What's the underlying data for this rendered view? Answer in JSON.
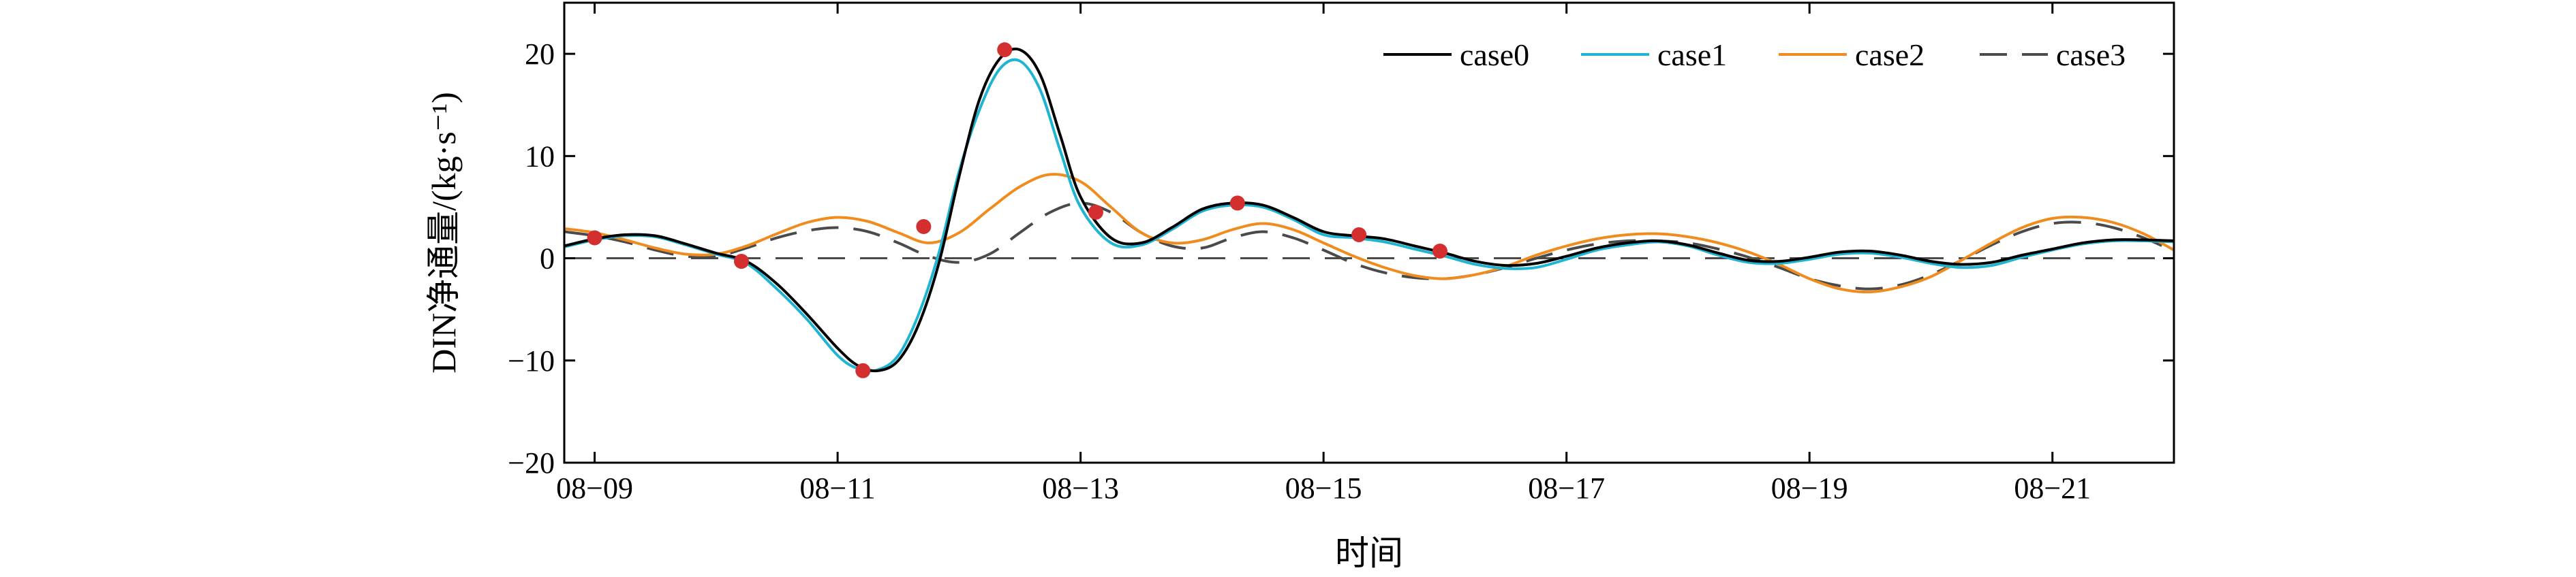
{
  "chart_data": {
    "type": "line",
    "xlabel": "时间",
    "ylabel": "DIN净通量/(kg·s⁻¹)",
    "xlim": [
      "2023-08-08T18:00",
      "2023-08-22T00:00"
    ],
    "ylim": [
      -20,
      25
    ],
    "xticks": [
      "2023-08-09",
      "2023-08-11",
      "2023-08-13",
      "2023-08-15",
      "2023-08-17",
      "2023-08-19",
      "2023-08-21"
    ],
    "xtick_labels": [
      "08−09",
      "08−11",
      "08−13",
      "08−15",
      "08−17",
      "08−19",
      "08−21"
    ],
    "yticks": [
      -20,
      -10,
      0,
      10,
      20
    ],
    "ytick_labels": [
      "−20",
      "−10",
      "0",
      "10",
      "20"
    ],
    "grid": false,
    "legend_position": "top-right",
    "series": [
      {
        "name": "case0",
        "color": "#000000",
        "dash": "solid",
        "x": [
          "2023-08-08T18:00",
          "2023-08-09T00:00",
          "2023-08-09T06:00",
          "2023-08-09T12:00",
          "2023-08-09T18:00",
          "2023-08-10T00:00",
          "2023-08-10T06:00",
          "2023-08-10T12:00",
          "2023-08-10T18:00",
          "2023-08-11T00:00",
          "2023-08-11T04:00",
          "2023-08-11T08:00",
          "2023-08-11T12:00",
          "2023-08-11T16:00",
          "2023-08-11T20:00",
          "2023-08-12T00:00",
          "2023-08-12T04:00",
          "2023-08-12T08:00",
          "2023-08-12T12:00",
          "2023-08-12T16:00",
          "2023-08-12T20:00",
          "2023-08-13T00:00",
          "2023-08-13T06:00",
          "2023-08-13T12:00",
          "2023-08-13T18:00",
          "2023-08-14T00:00",
          "2023-08-14T06:00",
          "2023-08-14T12:00",
          "2023-08-14T18:00",
          "2023-08-15T00:00",
          "2023-08-15T06:00",
          "2023-08-15T12:00",
          "2023-08-15T18:00",
          "2023-08-16T00:00",
          "2023-08-16T06:00",
          "2023-08-16T12:00",
          "2023-08-16T18:00",
          "2023-08-17T00:00",
          "2023-08-17T06:00",
          "2023-08-17T12:00",
          "2023-08-17T18:00",
          "2023-08-18T00:00",
          "2023-08-18T06:00",
          "2023-08-18T12:00",
          "2023-08-18T18:00",
          "2023-08-19T00:00",
          "2023-08-19T06:00",
          "2023-08-19T12:00",
          "2023-08-19T18:00",
          "2023-08-20T00:00",
          "2023-08-20T06:00",
          "2023-08-20T12:00",
          "2023-08-20T18:00",
          "2023-08-21T00:00",
          "2023-08-21T06:00",
          "2023-08-21T12:00",
          "2023-08-21T18:00",
          "2023-08-22T00:00"
        ],
        "y": [
          1.2,
          1.9,
          2.3,
          2.2,
          1.4,
          0.5,
          -0.3,
          -2.5,
          -5.5,
          -8.8,
          -10.5,
          -11.0,
          -10.0,
          -6.5,
          -0.5,
          8.0,
          15.5,
          19.5,
          20.4,
          18.0,
          12.0,
          6.0,
          2.0,
          1.5,
          3.0,
          4.8,
          5.4,
          5.2,
          4.0,
          2.6,
          2.2,
          1.9,
          1.2,
          0.5,
          -0.3,
          -0.7,
          -0.5,
          0.2,
          1.0,
          1.5,
          1.7,
          1.3,
          0.5,
          -0.2,
          -0.3,
          0.1,
          0.6,
          0.7,
          0.3,
          -0.3,
          -0.6,
          -0.4,
          0.3,
          0.9,
          1.5,
          1.8,
          1.8,
          1.7
        ]
      },
      {
        "name": "case1",
        "color": "#1fb5d2",
        "dash": "solid",
        "x": [
          "2023-08-08T18:00",
          "2023-08-09T00:00",
          "2023-08-09T06:00",
          "2023-08-09T12:00",
          "2023-08-09T18:00",
          "2023-08-10T00:00",
          "2023-08-10T06:00",
          "2023-08-10T12:00",
          "2023-08-10T18:00",
          "2023-08-11T00:00",
          "2023-08-11T04:00",
          "2023-08-11T08:00",
          "2023-08-11T12:00",
          "2023-08-11T16:00",
          "2023-08-11T20:00",
          "2023-08-12T00:00",
          "2023-08-12T04:00",
          "2023-08-12T08:00",
          "2023-08-12T12:00",
          "2023-08-12T16:00",
          "2023-08-12T20:00",
          "2023-08-13T00:00",
          "2023-08-13T06:00",
          "2023-08-13T12:00",
          "2023-08-13T18:00",
          "2023-08-14T00:00",
          "2023-08-14T06:00",
          "2023-08-14T12:00",
          "2023-08-14T18:00",
          "2023-08-15T00:00",
          "2023-08-15T06:00",
          "2023-08-15T12:00",
          "2023-08-15T18:00",
          "2023-08-16T00:00",
          "2023-08-16T06:00",
          "2023-08-16T12:00",
          "2023-08-16T18:00",
          "2023-08-17T00:00",
          "2023-08-17T06:00",
          "2023-08-17T12:00",
          "2023-08-17T18:00",
          "2023-08-18T00:00",
          "2023-08-18T06:00",
          "2023-08-18T12:00",
          "2023-08-18T18:00",
          "2023-08-19T00:00",
          "2023-08-19T06:00",
          "2023-08-19T12:00",
          "2023-08-19T18:00",
          "2023-08-20T00:00",
          "2023-08-20T06:00",
          "2023-08-20T12:00",
          "2023-08-20T18:00",
          "2023-08-21T00:00",
          "2023-08-21T06:00",
          "2023-08-21T12:00",
          "2023-08-21T18:00",
          "2023-08-22T00:00"
        ],
        "y": [
          1.1,
          1.8,
          2.2,
          2.1,
          1.3,
          0.4,
          -0.5,
          -3.0,
          -6.0,
          -9.5,
          -10.8,
          -10.9,
          -9.5,
          -5.5,
          0.5,
          8.5,
          14.5,
          18.5,
          19.3,
          16.5,
          10.5,
          5.0,
          1.5,
          1.3,
          2.8,
          4.6,
          5.2,
          5.0,
          3.8,
          2.3,
          2.0,
          1.6,
          0.9,
          0.2,
          -0.6,
          -1.0,
          -0.9,
          -0.1,
          0.8,
          1.3,
          1.6,
          1.2,
          0.3,
          -0.4,
          -0.5,
          -0.1,
          0.4,
          0.5,
          0.1,
          -0.5,
          -0.9,
          -0.7,
          0.1,
          0.8,
          1.4,
          1.7,
          1.7,
          1.6
        ]
      },
      {
        "name": "case2",
        "color": "#f08c1e",
        "dash": "solid",
        "x": [
          "2023-08-08T18:00",
          "2023-08-09T00:00",
          "2023-08-09T06:00",
          "2023-08-09T12:00",
          "2023-08-09T18:00",
          "2023-08-10T00:00",
          "2023-08-10T06:00",
          "2023-08-10T12:00",
          "2023-08-10T18:00",
          "2023-08-11T00:00",
          "2023-08-11T06:00",
          "2023-08-11T12:00",
          "2023-08-11T18:00",
          "2023-08-12T00:00",
          "2023-08-12T06:00",
          "2023-08-12T12:00",
          "2023-08-12T18:00",
          "2023-08-13T00:00",
          "2023-08-13T06:00",
          "2023-08-13T12:00",
          "2023-08-13T18:00",
          "2023-08-14T00:00",
          "2023-08-14T06:00",
          "2023-08-14T12:00",
          "2023-08-14T18:00",
          "2023-08-15T00:00",
          "2023-08-15T06:00",
          "2023-08-15T12:00",
          "2023-08-15T18:00",
          "2023-08-16T00:00",
          "2023-08-16T06:00",
          "2023-08-16T12:00",
          "2023-08-16T18:00",
          "2023-08-17T00:00",
          "2023-08-17T06:00",
          "2023-08-17T12:00",
          "2023-08-17T18:00",
          "2023-08-18T00:00",
          "2023-08-18T06:00",
          "2023-08-18T12:00",
          "2023-08-18T18:00",
          "2023-08-19T00:00",
          "2023-08-19T06:00",
          "2023-08-19T12:00",
          "2023-08-19T18:00",
          "2023-08-20T00:00",
          "2023-08-20T06:00",
          "2023-08-20T12:00",
          "2023-08-20T18:00",
          "2023-08-21T00:00",
          "2023-08-21T06:00",
          "2023-08-21T12:00",
          "2023-08-21T18:00",
          "2023-08-22T00:00"
        ],
        "y": [
          2.9,
          2.5,
          1.8,
          1.0,
          0.4,
          0.4,
          1.2,
          2.4,
          3.5,
          4.0,
          3.6,
          2.5,
          1.5,
          2.5,
          4.8,
          7.0,
          8.2,
          7.5,
          5.0,
          2.5,
          1.5,
          1.8,
          2.8,
          3.4,
          2.8,
          1.5,
          0.2,
          -0.9,
          -1.7,
          -2.0,
          -1.6,
          -0.8,
          0.3,
          1.2,
          1.9,
          2.3,
          2.4,
          2.1,
          1.5,
          0.6,
          -0.6,
          -2.0,
          -3.0,
          -3.3,
          -2.8,
          -1.8,
          -0.2,
          1.5,
          3.0,
          3.9,
          4.0,
          3.5,
          2.4,
          0.8
        ]
      },
      {
        "name": "case3",
        "color": "#4a4a4a",
        "dash": "dashed",
        "x": [
          "2023-08-08T18:00",
          "2023-08-09T00:00",
          "2023-08-09T06:00",
          "2023-08-09T12:00",
          "2023-08-09T18:00",
          "2023-08-10T00:00",
          "2023-08-10T06:00",
          "2023-08-10T12:00",
          "2023-08-10T18:00",
          "2023-08-11T00:00",
          "2023-08-11T06:00",
          "2023-08-11T12:00",
          "2023-08-11T18:00",
          "2023-08-12T00:00",
          "2023-08-12T06:00",
          "2023-08-12T12:00",
          "2023-08-12T18:00",
          "2023-08-13T00:00",
          "2023-08-13T06:00",
          "2023-08-13T12:00",
          "2023-08-13T18:00",
          "2023-08-14T00:00",
          "2023-08-14T06:00",
          "2023-08-14T12:00",
          "2023-08-14T18:00",
          "2023-08-15T00:00",
          "2023-08-15T06:00",
          "2023-08-15T12:00",
          "2023-08-15T18:00",
          "2023-08-16T00:00",
          "2023-08-16T06:00",
          "2023-08-16T12:00",
          "2023-08-16T18:00",
          "2023-08-17T00:00",
          "2023-08-17T06:00",
          "2023-08-17T12:00",
          "2023-08-17T18:00",
          "2023-08-18T00:00",
          "2023-08-18T06:00",
          "2023-08-18T12:00",
          "2023-08-18T18:00",
          "2023-08-19T00:00",
          "2023-08-19T06:00",
          "2023-08-19T12:00",
          "2023-08-19T18:00",
          "2023-08-20T00:00",
          "2023-08-20T06:00",
          "2023-08-20T12:00",
          "2023-08-20T18:00",
          "2023-08-21T00:00",
          "2023-08-21T06:00",
          "2023-08-21T12:00",
          "2023-08-21T18:00",
          "2023-08-22T00:00"
        ],
        "y": [
          2.6,
          2.2,
          1.6,
          0.8,
          0.2,
          0.2,
          1.0,
          2.0,
          2.7,
          3.0,
          2.6,
          1.5,
          0.2,
          -0.4,
          0.4,
          2.5,
          4.5,
          5.4,
          4.5,
          2.5,
          1.2,
          1.0,
          2.0,
          2.6,
          2.0,
          0.8,
          -0.5,
          -1.4,
          -1.9,
          -2.0,
          -1.6,
          -0.9,
          0.0,
          0.8,
          1.4,
          1.7,
          1.7,
          1.5,
          0.9,
          0.1,
          -0.9,
          -2.0,
          -2.7,
          -3.0,
          -2.6,
          -1.6,
          -0.2,
          1.3,
          2.6,
          3.4,
          3.5,
          3.0,
          2.0,
          0.7
        ]
      },
      {
        "name": "zero-line",
        "color": "#4a4a4a",
        "dash": "dashed",
        "x": [
          "2023-08-08T18:00",
          "2023-08-22T00:00"
        ],
        "y": [
          0,
          0
        ]
      }
    ],
    "markers": {
      "color": "#d32f2f",
      "x": [
        "2023-08-09T00:00",
        "2023-08-10T05:00",
        "2023-08-11T05:00",
        "2023-08-11T17:00",
        "2023-08-12T09:00",
        "2023-08-13T03:00",
        "2023-08-14T07:00",
        "2023-08-15T07:00",
        "2023-08-15T23:00"
      ],
      "y": [
        2.0,
        -0.3,
        -11.0,
        3.1,
        20.4,
        4.5,
        5.4,
        2.3,
        0.7
      ]
    }
  }
}
